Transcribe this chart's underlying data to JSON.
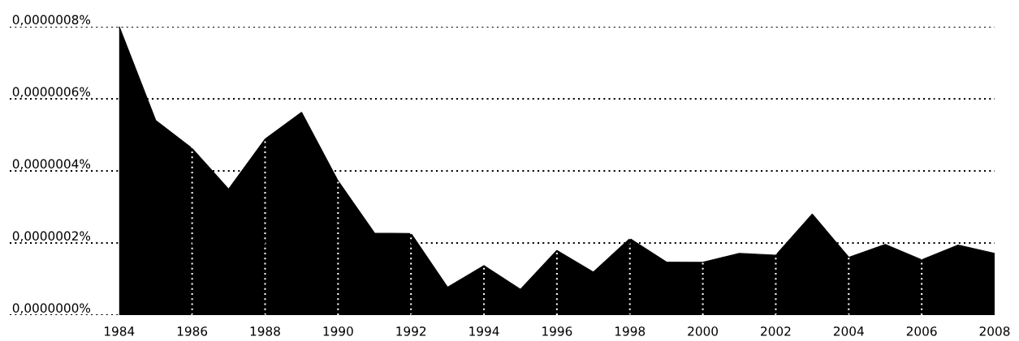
{
  "chart_data": {
    "type": "area",
    "x": [
      1984,
      1985,
      1986,
      1987,
      1988,
      1989,
      1990,
      1991,
      1992,
      1993,
      1994,
      1995,
      1996,
      1997,
      1998,
      1999,
      2000,
      2001,
      2002,
      2003,
      2004,
      2005,
      2006,
      2007,
      2008
    ],
    "series": [
      {
        "color": "#000000",
        "values": [
          8e-07,
          5.4e-07,
          4.62e-07,
          3.49e-07,
          4.88e-07,
          5.62e-07,
          3.72e-07,
          2.27e-07,
          2.26e-07,
          7.7e-08,
          1.37e-07,
          7.1e-08,
          1.79e-07,
          1.19e-07,
          2.12e-07,
          1.47e-07,
          1.46e-07,
          1.71e-07,
          1.66e-07,
          2.8e-07,
          1.6e-07,
          1.96e-07,
          1.53e-07,
          1.94e-07,
          1.71e-07
        ]
      }
    ],
    "xlim": [
      1981,
      2008
    ],
    "xticks": [
      1984,
      1986,
      1988,
      1990,
      1992,
      1994,
      1996,
      1998,
      2000,
      2002,
      2004,
      2006,
      2008
    ],
    "ylim": [
      0,
      8e-07
    ],
    "yticks": [
      {
        "value": 0,
        "label": "0,0000000%"
      },
      {
        "value": 2e-07,
        "label": "0,0000002%"
      },
      {
        "value": 4e-07,
        "label": "0,0000004%"
      },
      {
        "value": 6e-07,
        "label": "0,0000006%"
      },
      {
        "value": 8e-07,
        "label": "0,0000008%"
      }
    ],
    "grid": true
  }
}
